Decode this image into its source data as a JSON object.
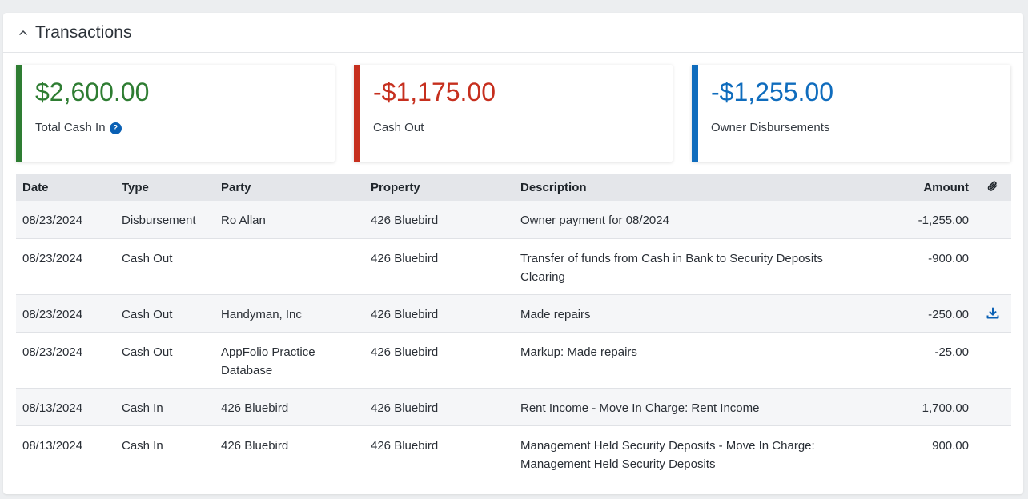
{
  "section": {
    "title": "Transactions"
  },
  "colors": {
    "green": "#2e7d32",
    "red": "#c62f1e",
    "blue": "#0f6cbd",
    "help": "#0a60b4"
  },
  "cards": [
    {
      "value": "$2,600.00",
      "label": "Total Cash In",
      "has_help": true
    },
    {
      "value": "-$1,175.00",
      "label": "Cash Out"
    },
    {
      "value": "-$1,255.00",
      "label": "Owner Disbursements"
    }
  ],
  "table": {
    "headers": {
      "date": "Date",
      "type": "Type",
      "party": "Party",
      "property": "Property",
      "description": "Description",
      "amount": "Amount",
      "attachment_icon": "paperclip-icon"
    },
    "rows": [
      {
        "date": "08/23/2024",
        "type": "Disbursement",
        "party": "Ro Allan",
        "property": "426 Bluebird",
        "description": "Owner payment for 08/2024",
        "amount": "-1,255.00",
        "attachment": false
      },
      {
        "date": "08/23/2024",
        "type": "Cash Out",
        "party": "",
        "property": "426 Bluebird",
        "description": "Transfer of funds from Cash in Bank to Security Deposits Clearing",
        "amount": "-900.00",
        "attachment": false
      },
      {
        "date": "08/23/2024",
        "type": "Cash Out",
        "party": "Handyman, Inc",
        "property": "426 Bluebird",
        "description": "Made repairs",
        "amount": "-250.00",
        "attachment": true
      },
      {
        "date": "08/23/2024",
        "type": "Cash Out",
        "party": "AppFolio Practice Database",
        "property": "426 Bluebird",
        "description": "Markup: Made repairs",
        "amount": "-25.00",
        "attachment": false
      },
      {
        "date": "08/13/2024",
        "type": "Cash In",
        "party": "426 Bluebird",
        "property": "426 Bluebird",
        "description": "Rent Income - Move In Charge: Rent Income",
        "amount": "1,700.00",
        "attachment": false
      },
      {
        "date": "08/13/2024",
        "type": "Cash In",
        "party": "426 Bluebird",
        "property": "426 Bluebird",
        "description": "Management Held Security Deposits - Move In Charge: Management Held Security Deposits",
        "amount": "900.00",
        "attachment": false
      }
    ]
  }
}
